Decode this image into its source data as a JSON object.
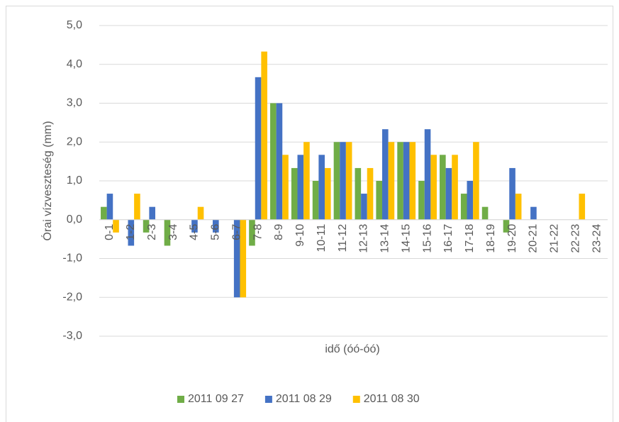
{
  "chart_data": {
    "type": "bar",
    "categories": [
      "0-1",
      "1-2",
      "2-3",
      "3-4",
      "4-5",
      "5-6",
      "6-7",
      "7-8",
      "8-9",
      "9-10",
      "10-11",
      "11-12",
      "12-13",
      "13-14",
      "14-15",
      "15-16",
      "16-17",
      "17-18",
      "18-19",
      "19-20",
      "20-21",
      "21-22",
      "22-23",
      "23-24"
    ],
    "series": [
      {
        "name": "2011 09 27",
        "color": "#70ad47",
        "values": [
          0.33,
          0,
          -0.33,
          -0.67,
          0,
          0,
          0,
          -0.67,
          3.0,
          1.33,
          1.0,
          2.0,
          1.33,
          1.0,
          2.0,
          1.0,
          1.67,
          0.67,
          0.33,
          -0.33,
          0,
          0,
          0,
          0
        ]
      },
      {
        "name": "2011 08 29",
        "color": "#4472c4",
        "values": [
          0.67,
          -0.67,
          0.33,
          0,
          -0.33,
          -0.33,
          -2.0,
          3.67,
          3.0,
          1.67,
          1.67,
          2.0,
          0.67,
          2.33,
          2.0,
          2.33,
          1.33,
          1.0,
          0,
          1.33,
          0.33,
          0,
          0,
          0
        ]
      },
      {
        "name": "2011 08 30",
        "color": "#ffc000",
        "values": [
          -0.33,
          0.67,
          0,
          0,
          0.33,
          0,
          -2.0,
          4.33,
          1.67,
          2.0,
          1.33,
          2.0,
          1.33,
          2.0,
          2.0,
          1.67,
          1.67,
          2.0,
          0,
          0.67,
          0,
          0,
          0.67,
          0
        ]
      }
    ],
    "x_label": "idő (óó-óó)",
    "y_label": "Órai vízveszteség (mm)",
    "ylim": [
      -3,
      5
    ],
    "yticks": [
      {
        "value": -3,
        "label": "-3,0"
      },
      {
        "value": -2,
        "label": "-2,0"
      },
      {
        "value": -1,
        "label": "-1,0"
      },
      {
        "value": 0,
        "label": "0,0"
      },
      {
        "value": 1,
        "label": "1,0"
      },
      {
        "value": 2,
        "label": "2,0"
      },
      {
        "value": 3,
        "label": "3,0"
      },
      {
        "value": 4,
        "label": "4,0"
      },
      {
        "value": 5,
        "label": "5,0"
      }
    ],
    "grid": true,
    "legend": "bottom"
  }
}
